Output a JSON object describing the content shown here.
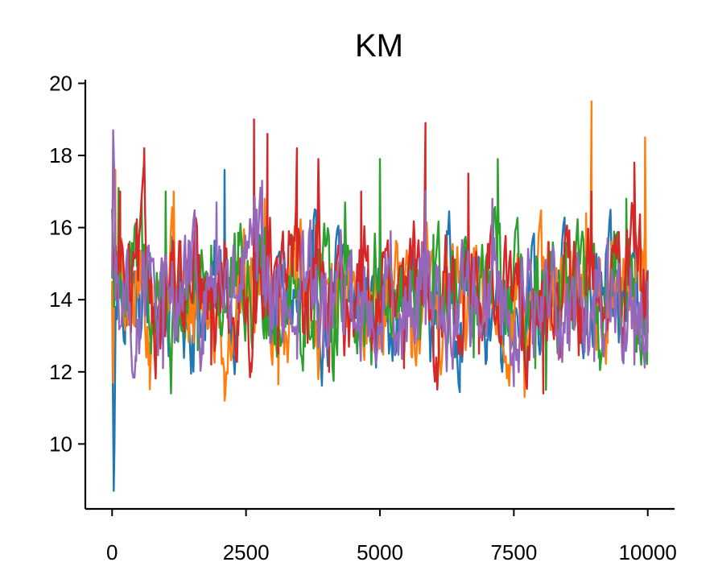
{
  "chart_data": {
    "type": "line",
    "title": "KM",
    "xlabel": "",
    "ylabel": "",
    "xlim": [
      -500,
      10500
    ],
    "ylim": [
      8.2,
      20.1
    ],
    "x_ticks": [
      0,
      2500,
      5000,
      7500,
      10000
    ],
    "x_tick_labels": [
      "0",
      "2500",
      "5000",
      "7500",
      "10000"
    ],
    "y_ticks": [
      10,
      12,
      14,
      16,
      18,
      20
    ],
    "y_tick_labels": [
      "10",
      "12",
      "14",
      "16",
      "18",
      "20"
    ],
    "grid": false,
    "legend": "none",
    "x_range": [
      0,
      10000
    ],
    "series": [
      {
        "color": "#1f77b4",
        "x": [
          0,
          30,
          100,
          250,
          500,
          750,
          1000,
          1250,
          1500,
          1750,
          2000,
          2100,
          2250,
          2500,
          2750,
          3000,
          3250,
          3500,
          3750,
          4000,
          4250,
          4500,
          4750,
          5000,
          5250,
          5500,
          5750,
          6000,
          6250,
          6500,
          6750,
          7000,
          7250,
          7500,
          7750,
          8000,
          8250,
          8500,
          8750,
          9000,
          9250,
          9500,
          9750,
          10000
        ],
        "y": [
          14.3,
          8.7,
          14.8,
          14.2,
          13.5,
          14.1,
          13.2,
          14.6,
          13.0,
          14.4,
          13.6,
          17.6,
          13.4,
          14.2,
          15.8,
          13.3,
          14.7,
          13.1,
          14.3,
          12.7,
          15.2,
          13.4,
          14.6,
          13.0,
          14.5,
          13.2,
          14.9,
          12.4,
          15.9,
          13.3,
          14.1,
          12.9,
          14.4,
          13.7,
          14.2,
          12.6,
          15.1,
          13.4,
          14.0,
          12.8,
          14.5,
          13.1,
          17.3,
          14.8
        ]
      },
      {
        "color": "#ff7f0e",
        "x": [
          0,
          20,
          60,
          150,
          300,
          500,
          700,
          900,
          1150,
          1400,
          1650,
          1900,
          2100,
          2350,
          2600,
          2850,
          3100,
          3350,
          3600,
          3850,
          4100,
          4350,
          4600,
          4850,
          5100,
          5350,
          5600,
          5850,
          6100,
          6350,
          6600,
          6850,
          7100,
          7350,
          7600,
          7700,
          7850,
          8100,
          8350,
          8600,
          8850,
          8950,
          9000,
          9250,
          9500,
          9750,
          9950,
          10000
        ],
        "y": [
          14.5,
          11.7,
          17.6,
          14.6,
          13.3,
          14.9,
          12.8,
          14.2,
          17.0,
          13.4,
          14.8,
          12.5,
          11.2,
          15.3,
          13.6,
          16.8,
          12.4,
          14.7,
          13.9,
          11.8,
          15.0,
          13.2,
          14.4,
          12.9,
          15.1,
          13.5,
          12.4,
          14.6,
          13.1,
          15.4,
          12.6,
          14.3,
          13.8,
          12.4,
          14.8,
          11.3,
          13.6,
          14.9,
          12.7,
          14.1,
          16.4,
          19.5,
          13.9,
          12.8,
          14.6,
          13.4,
          18.5,
          14.5
        ]
      },
      {
        "color": "#2ca02c",
        "x": [
          0,
          40,
          120,
          300,
          550,
          800,
          1000,
          1100,
          1350,
          1600,
          1850,
          2100,
          2350,
          2600,
          2850,
          3100,
          3350,
          3600,
          3850,
          4100,
          4350,
          4600,
          4850,
          5000,
          5250,
          5500,
          5750,
          6000,
          6250,
          6500,
          6750,
          7000,
          7200,
          7400,
          7650,
          7900,
          8100,
          8350,
          8600,
          8850,
          9100,
          9350,
          9600,
          9850,
          10000
        ],
        "y": [
          16.5,
          13.8,
          17.1,
          14.5,
          16.8,
          13.1,
          17.0,
          11.4,
          14.3,
          12.6,
          15.5,
          13.8,
          14.7,
          12.9,
          16.0,
          13.6,
          14.8,
          12.7,
          15.4,
          13.3,
          16.7,
          14.0,
          12.8,
          17.9,
          13.5,
          14.6,
          12.9,
          15.8,
          13.7,
          14.5,
          12.4,
          14.3,
          17.9,
          13.0,
          14.8,
          12.1,
          11.5,
          14.7,
          13.2,
          15.2,
          12.6,
          14.1,
          16.8,
          13.4,
          14.0
        ]
      },
      {
        "color": "#d62728",
        "x": [
          0,
          50,
          150,
          350,
          600,
          850,
          1100,
          1350,
          1600,
          1850,
          2100,
          2350,
          2600,
          2650,
          2700,
          2900,
          3100,
          3300,
          3450,
          3650,
          3850,
          4050,
          4250,
          4450,
          4650,
          4850,
          5050,
          5250,
          5450,
          5650,
          5850,
          6050,
          6250,
          6450,
          6650,
          6850,
          7050,
          7250,
          7450,
          7650,
          7850,
          8050,
          8150,
          8350,
          8550,
          8750,
          8950,
          9150,
          9350,
          9550,
          9750,
          10000
        ],
        "y": [
          14.7,
          15.4,
          17.0,
          13.2,
          18.2,
          12.6,
          15.3,
          13.1,
          14.8,
          12.2,
          15.6,
          13.4,
          12.0,
          19.0,
          14.1,
          18.6,
          12.5,
          15.9,
          18.2,
          12.8,
          17.9,
          12.0,
          14.6,
          13.4,
          17.0,
          12.6,
          15.3,
          13.5,
          12.1,
          15.6,
          18.9,
          12.4,
          14.9,
          13.1,
          17.5,
          12.5,
          15.4,
          13.3,
          14.7,
          12.6,
          14.3,
          11.4,
          15.6,
          13.0,
          14.8,
          12.8,
          17.0,
          13.6,
          15.5,
          12.7,
          17.8,
          13.1
        ]
      },
      {
        "color": "#9467bd",
        "x": [
          0,
          20,
          80,
          200,
          450,
          700,
          950,
          1200,
          1450,
          1700,
          1950,
          2200,
          2450,
          2700,
          2800,
          2950,
          3200,
          3450,
          3700,
          3950,
          4200,
          4450,
          4700,
          4950,
          5200,
          5450,
          5700,
          5850,
          6100,
          6350,
          6600,
          6850,
          7100,
          7250,
          7500,
          7750,
          8000,
          8250,
          8500,
          8750,
          9000,
          9250,
          9500,
          9750,
          10000
        ],
        "y": [
          14.6,
          18.7,
          15.2,
          14.5,
          12.3,
          14.9,
          12.1,
          14.3,
          15.6,
          12.5,
          16.7,
          13.2,
          15.4,
          16.5,
          17.3,
          12.8,
          15.1,
          13.0,
          16.2,
          12.4,
          14.8,
          13.5,
          14.2,
          12.6,
          15.9,
          13.2,
          12.9,
          17.0,
          13.7,
          12.4,
          14.6,
          13.3,
          16.8,
          14.0,
          11.6,
          14.4,
          13.1,
          15.3,
          12.8,
          14.6,
          12.3,
          15.7,
          13.5,
          12.2,
          14.5
        ]
      }
    ]
  }
}
